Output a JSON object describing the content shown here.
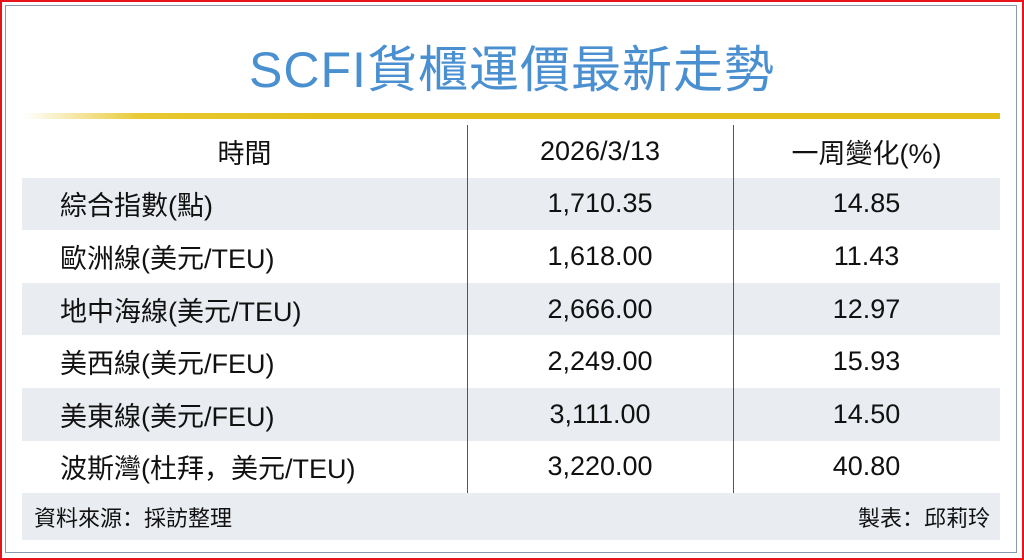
{
  "title": "SCFI貨櫃運價最新走勢",
  "table": {
    "headers": [
      "時間",
      "2026/3/13",
      "一周變化(%)"
    ],
    "rows": [
      [
        "綜合指數(點)",
        "1,710.35",
        "14.85"
      ],
      [
        "歐洲線(美元/TEU)",
        "1,618.00",
        "11.43"
      ],
      [
        "地中海線(美元/TEU)",
        "2,666.00",
        "12.97"
      ],
      [
        "美西線(美元/FEU)",
        "2,249.00",
        "15.93"
      ],
      [
        "美東線(美元/FEU)",
        "3,111.00",
        "14.50"
      ],
      [
        "波斯灣(杜拜，美元/TEU)",
        "3,220.00",
        "40.80"
      ]
    ]
  },
  "footer": {
    "source": "資料來源：採訪整理",
    "author": "製表：邱莉玲"
  },
  "colors": {
    "title": "#4a8fd0",
    "rule": "#e3bf1a",
    "border": "#e8141c",
    "row_shade": "#e9edf1"
  }
}
